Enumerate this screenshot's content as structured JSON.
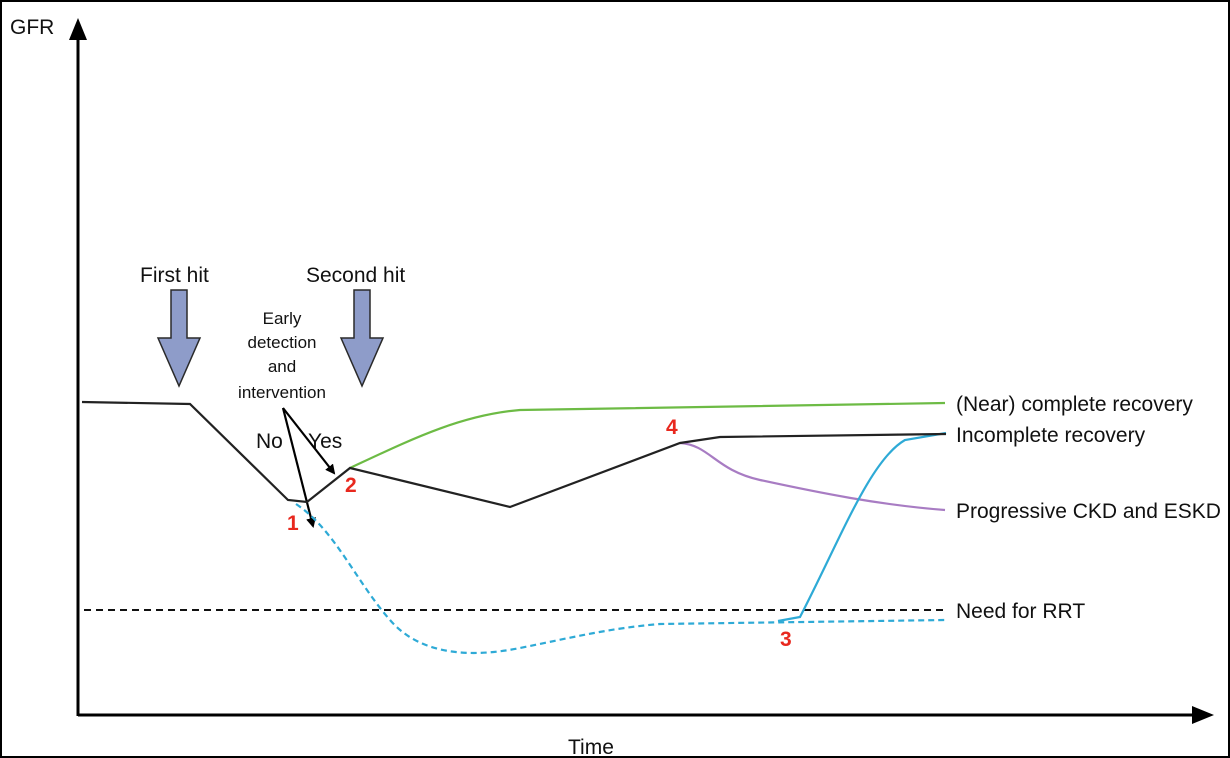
{
  "axes": {
    "y_label": "GFR",
    "x_label": "Time"
  },
  "events": {
    "first_hit": "First hit",
    "second_hit": "Second hit"
  },
  "decision": {
    "lines": [
      "Early",
      "detection",
      "and",
      "intervention"
    ],
    "no": "No",
    "yes": "Yes"
  },
  "markers": [
    "1",
    "2",
    "3",
    "4"
  ],
  "outcomes": {
    "complete": "(Near) complete recovery",
    "incomplete": "Incomplete recovery",
    "progressive": "Progressive CKD and ESKD",
    "rrt": "Need for RRT"
  },
  "colors": {
    "baseline": "#222222",
    "complete_recovery": "#6dbb45",
    "progressive": "#a87cc3",
    "dialysis": "#2eaad6",
    "threshold": "#111111",
    "hit_arrow_fill": "#8e9cc9",
    "markers": "#e8281e"
  }
}
